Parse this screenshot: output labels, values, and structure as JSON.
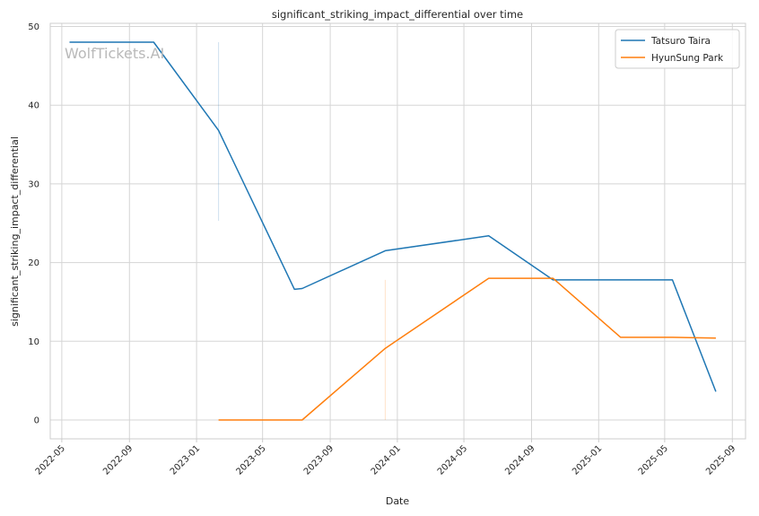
{
  "chart_data": {
    "type": "line",
    "title": "significant_striking_impact_differential over time",
    "xlabel": "Date",
    "ylabel": "significant_striking_impact_differential",
    "watermark": "WolfTickets.AI",
    "x_ticks": [
      "2022-05",
      "2022-09",
      "2023-01",
      "2023-05",
      "2023-09",
      "2024-01",
      "2024-05",
      "2024-09",
      "2025-01",
      "2025-05",
      "2025-09"
    ],
    "xlim": [
      "2022-04-10",
      "2025-09-25"
    ],
    "y_ticks": [
      0,
      10,
      20,
      30,
      40,
      50
    ],
    "ylim": [
      -2.4,
      50.4
    ],
    "grid": true,
    "legend": "top-right",
    "series": [
      {
        "name": "Tatsuro Taira",
        "color": "#1f77b4",
        "points": [
          {
            "x": "2022-05-15",
            "y": 48.0
          },
          {
            "x": "2022-10-15",
            "y": 48.0
          },
          {
            "x": "2023-02-10",
            "y": 36.8
          },
          {
            "x": "2023-06-28",
            "y": 16.6
          },
          {
            "x": "2023-07-12",
            "y": 16.7
          },
          {
            "x": "2023-12-10",
            "y": 21.5
          },
          {
            "x": "2024-06-15",
            "y": 23.4
          },
          {
            "x": "2024-10-10",
            "y": 17.8
          },
          {
            "x": "2025-05-15",
            "y": 17.8
          },
          {
            "x": "2025-08-02",
            "y": 3.6
          }
        ]
      },
      {
        "name": "HyunSung Park",
        "color": "#ff7f0e",
        "points": [
          {
            "x": "2023-02-10",
            "y": 0.0
          },
          {
            "x": "2023-07-12",
            "y": 0.0
          },
          {
            "x": "2023-12-10",
            "y": 9.1
          },
          {
            "x": "2024-06-15",
            "y": 18.0
          },
          {
            "x": "2024-10-10",
            "y": 18.0
          },
          {
            "x": "2025-02-10",
            "y": 10.5
          },
          {
            "x": "2025-05-15",
            "y": 10.5
          },
          {
            "x": "2025-08-02",
            "y": 10.4
          }
        ]
      }
    ],
    "range_bands": [
      {
        "series": "Tatsuro Taira",
        "x": "2023-02-10",
        "y_low": 25.3,
        "y_high": 48.0
      },
      {
        "series": "HyunSung Park",
        "x": "2023-12-10",
        "y_low": 0.0,
        "y_high": 17.8
      }
    ]
  }
}
